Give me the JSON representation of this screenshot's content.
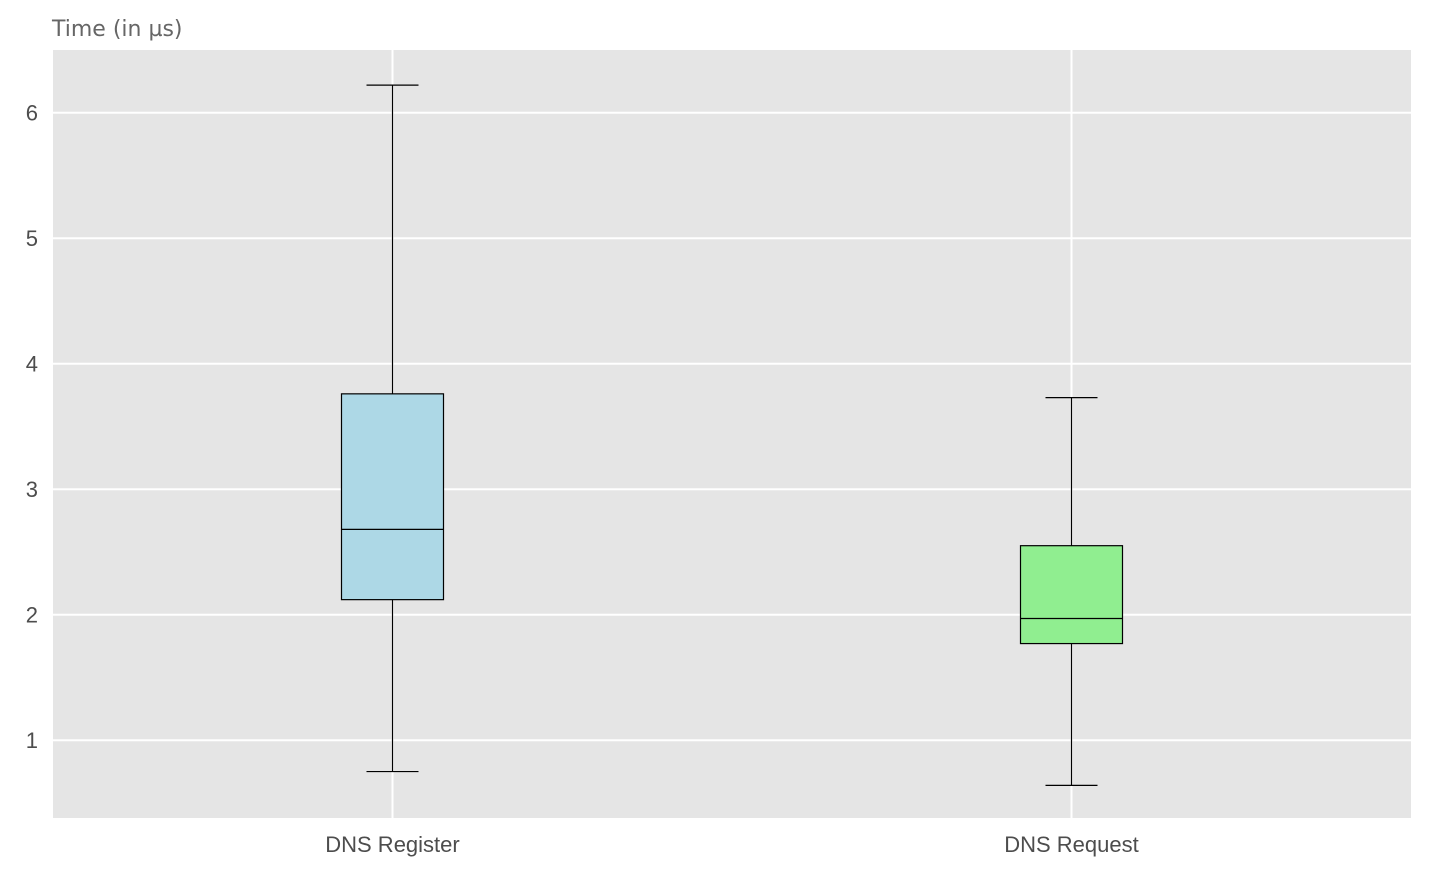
{
  "chart_data": {
    "type": "box",
    "title": "",
    "xlabel": "",
    "ylabel": "Time (in µs)",
    "ylim": [
      0.38,
      6.5
    ],
    "yticks": [
      1,
      2,
      3,
      4,
      5,
      6
    ],
    "grid": true,
    "colors": {
      "background": "#e5e5e5",
      "grid": "#ffffff",
      "outline": "#000000",
      "tick_text": "#4d4d4d",
      "label_text": "#666666"
    },
    "categories": [
      "DNS Register",
      "DNS Request"
    ],
    "series": [
      {
        "category": "DNS Register",
        "color": "#add8e6",
        "whisker_low": 0.75,
        "q1": 2.12,
        "median": 2.68,
        "q3": 3.76,
        "whisker_high": 6.22
      },
      {
        "category": "DNS Request",
        "color": "#90ee90",
        "whisker_low": 0.64,
        "q1": 1.77,
        "median": 1.97,
        "q3": 2.55,
        "whisker_high": 3.73
      }
    ]
  }
}
